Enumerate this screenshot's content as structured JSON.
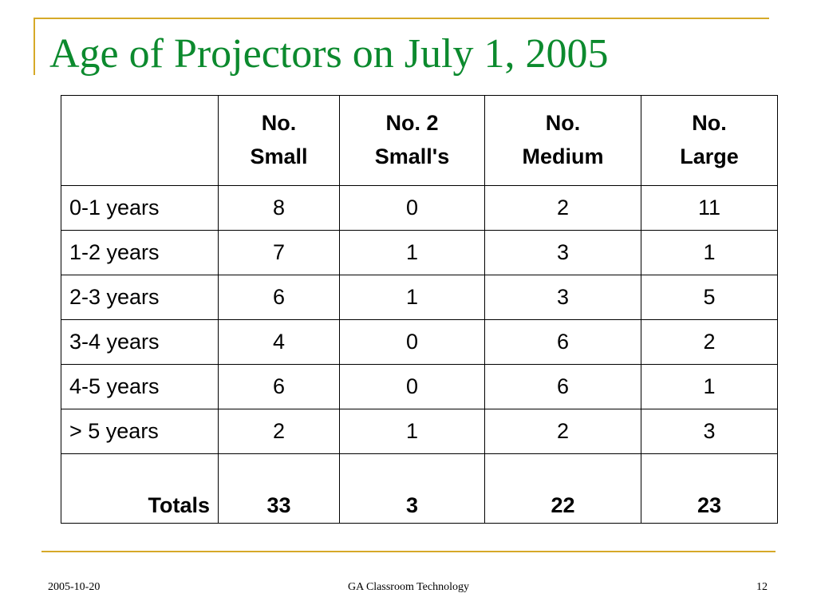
{
  "slide": {
    "title": "Age of Projectors on July 1, 2005"
  },
  "table": {
    "headers": [
      "",
      [
        "No.",
        "Small"
      ],
      [
        "No. 2",
        "Small's"
      ],
      [
        "No.",
        "Medium"
      ],
      [
        "No.",
        "Large"
      ]
    ],
    "rows": [
      {
        "label": "0-1 years",
        "values": [
          "8",
          "0",
          "2",
          "11"
        ]
      },
      {
        "label": "1-2 years",
        "values": [
          "7",
          "1",
          "3",
          "1"
        ]
      },
      {
        "label": "2-3 years",
        "values": [
          "6",
          "1",
          "3",
          "5"
        ]
      },
      {
        "label": "3-4 years",
        "values": [
          "4",
          "0",
          "6",
          "2"
        ]
      },
      {
        "label": "4-5 years",
        "values": [
          "6",
          "0",
          "6",
          "1"
        ]
      },
      {
        "label": "> 5 years",
        "values": [
          "2",
          "1",
          "2",
          "3"
        ]
      }
    ],
    "totals": {
      "label": "Totals",
      "values": [
        "33",
        "3",
        "22",
        "23"
      ]
    }
  },
  "footer": {
    "date": "2005-10-20",
    "center": "GA Classroom Technology",
    "page": "12"
  },
  "colors": {
    "title": "#0c8a2e",
    "accent_rule": "#d6a928"
  }
}
